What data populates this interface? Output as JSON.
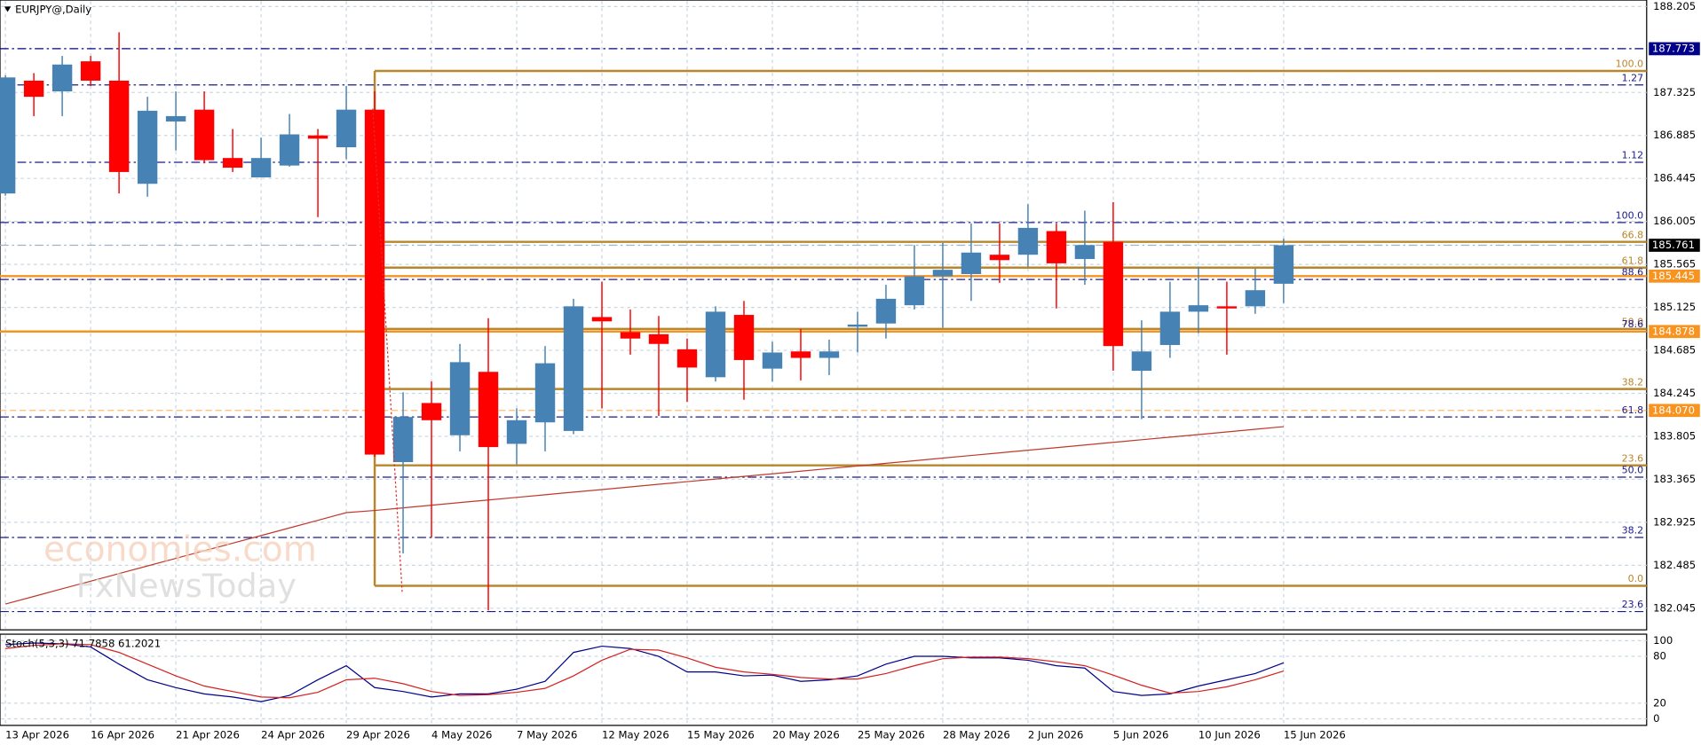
{
  "chart_data": [
    {
      "type": "candlestick",
      "title": "EURJPY@,Daily",
      "watermark": [
        "economies.com",
        "FxNewsToday"
      ],
      "categories": [
        "13 Apr 2026",
        null,
        null,
        "16 Apr 2026",
        null,
        null,
        "21 Apr 2026",
        null,
        null,
        "24 Apr 2026",
        null,
        null,
        "29 Apr 2026",
        null,
        null,
        "4 May 2026",
        null,
        null,
        "7 May 2026",
        null,
        null,
        "12 May 2026",
        null,
        null,
        "15 May 2026",
        null,
        null,
        "20 May 2026",
        null,
        null,
        "25 May 2026",
        null,
        null,
        "28 May 2026",
        null,
        null,
        "2 Jun 2026",
        null,
        null,
        "5 Jun 2026",
        null,
        null,
        "10 Jun 2026",
        null,
        null,
        "15 Jun 2026"
      ],
      "open": [
        186.291,
        187.446,
        187.336,
        187.644,
        187.446,
        186.39,
        187.028,
        187.149,
        186.654,
        186.456,
        186.577,
        186.885,
        186.764,
        187.149,
        183.541,
        184.146,
        183.816,
        184.465,
        183.728,
        183.948,
        183.86,
        185.026,
        184.872,
        184.85,
        184.696,
        184.41,
        185.048,
        184.498,
        184.674,
        184.608,
        184.927,
        184.96,
        185.147,
        185.444,
        185.466,
        185.664,
        185.664,
        185.906,
        185.62,
        185.796,
        184.476,
        184.74,
        185.081,
        185.136,
        185.136,
        185.367
      ],
      "high": [
        187.501,
        187.523,
        187.699,
        187.699,
        187.941,
        187.281,
        187.336,
        187.336,
        186.951,
        186.863,
        187.105,
        186.951,
        187.391,
        187.336,
        184.256,
        184.366,
        184.751,
        185.015,
        184.091,
        184.729,
        185.213,
        185.388,
        185.103,
        185.037,
        184.806,
        185.136,
        185.191,
        184.773,
        184.905,
        184.795,
        185.081,
        185.356,
        185.763,
        185.785,
        185.983,
        185.983,
        186.181,
        185.983,
        186.115,
        186.203,
        184.993,
        185.388,
        185.543,
        185.388,
        185.521,
        185.829
      ],
      "low": [
        186.269,
        187.083,
        187.083,
        187.391,
        186.291,
        186.258,
        186.731,
        186.599,
        186.511,
        186.456,
        186.566,
        186.049,
        186.643,
        183.596,
        182.606,
        182.771,
        183.651,
        182.023,
        183.519,
        183.651,
        183.827,
        184.091,
        184.641,
        184.014,
        184.157,
        184.366,
        184.179,
        184.366,
        184.377,
        184.432,
        184.663,
        184.806,
        185.103,
        184.916,
        185.191,
        185.377,
        185.543,
        185.114,
        185.356,
        184.476,
        183.981,
        184.608,
        184.861,
        184.641,
        185.059,
        185.169
      ],
      "close": [
        187.479,
        187.281,
        187.611,
        187.446,
        186.511,
        187.138,
        187.083,
        186.632,
        186.555,
        186.654,
        186.896,
        186.852,
        187.149,
        183.618,
        184.003,
        183.97,
        184.564,
        183.695,
        183.97,
        184.553,
        185.136,
        184.982,
        184.806,
        184.751,
        184.509,
        185.081,
        184.586,
        184.663,
        184.608,
        184.674,
        184.949,
        185.213,
        185.444,
        185.51,
        185.686,
        185.609,
        185.939,
        185.576,
        185.763,
        184.729,
        184.674,
        185.081,
        185.147,
        185.114,
        185.301,
        185.761
      ],
      "up_color": "#4682b4",
      "down_color": "#ff0000",
      "moving_average": {
        "color": "#c0392b",
        "values": [
          182.088,
          182.166,
          182.245,
          182.322,
          182.4,
          182.478,
          182.556,
          182.634,
          182.711,
          182.789,
          182.867,
          182.945,
          183.024,
          183.046,
          183.073,
          183.1,
          183.127,
          183.153,
          183.18,
          183.207,
          183.234,
          183.26,
          183.287,
          183.314,
          183.341,
          183.368,
          183.395,
          183.421,
          183.448,
          183.475,
          183.502,
          183.529,
          183.555,
          183.582,
          183.609,
          183.636,
          183.663,
          183.689,
          183.716,
          183.743,
          183.77,
          183.797,
          183.823,
          183.85,
          183.877,
          183.904
        ]
      },
      "fibonacci": [
        {
          "color": "#b8862b",
          "levels": [
            {
              "label": "100.0",
              "value": 187.545
            },
            {
              "label": "66.8",
              "value": 185.796
            },
            {
              "label": "61.8",
              "value": 185.532
            },
            {
              "label": "50.0",
              "value": 184.905
            },
            {
              "label": "38.2",
              "value": 184.289
            },
            {
              "label": "23.6",
              "value": 183.508
            },
            {
              "label": "0.0",
              "value": 182.275
            }
          ]
        },
        {
          "color": "#1a1a8c",
          "levels": [
            {
              "label": "1.27",
              "value": 187.402
            },
            {
              "label": "1.12",
              "value": 186.61
            },
            {
              "label": "100.0",
              "value": 185.994
            },
            {
              "label": "88.6",
              "value": 185.411
            },
            {
              "label": "78.6",
              "value": 184.883
            },
            {
              "label": "61.8",
              "value": 184.003
            },
            {
              "label": "50.0",
              "value": 183.387
            },
            {
              "label": "38.2",
              "value": 182.77
            },
            {
              "label": "23.6",
              "value": 182.011
            }
          ]
        }
      ],
      "price_lines": [
        {
          "value": 187.773,
          "color": "#00008b"
        },
        {
          "value": 185.761,
          "color": "#000000"
        },
        {
          "value": 185.445,
          "color": "#f7931e"
        },
        {
          "value": 184.878,
          "color": "#f7931e"
        },
        {
          "value": 184.07,
          "label": "184.070",
          "color": "#f7931e"
        }
      ],
      "ylim": [
        181.824,
        188.271
      ],
      "yticks": [
        188.205,
        187.325,
        186.885,
        186.445,
        186.005,
        185.565,
        185.125,
        184.685,
        184.245,
        183.805,
        183.365,
        182.925,
        182.485,
        182.045
      ],
      "grid": true
    },
    {
      "type": "line",
      "title": "Stoch(5,3,3) 71.7858 61.2021",
      "series": [
        {
          "color": "#00008b",
          "values": [
            95,
            97,
            96,
            92,
            70,
            50,
            40,
            32,
            28,
            22,
            30,
            50,
            68,
            40,
            35,
            28,
            32,
            32,
            38,
            48,
            85,
            93,
            90,
            80,
            60,
            60,
            55,
            56,
            48,
            50,
            55,
            70,
            80,
            80,
            78,
            78,
            75,
            68,
            65,
            35,
            30,
            32,
            42,
            50,
            58,
            71.79
          ]
        },
        {
          "color": "#d62020",
          "values": [
            90,
            94,
            96,
            95,
            85,
            70,
            55,
            42,
            35,
            28,
            27,
            34,
            50,
            52,
            45,
            35,
            30,
            31,
            34,
            39,
            55,
            75,
            89,
            88,
            78,
            66,
            60,
            57,
            53,
            51,
            51,
            58,
            68,
            77,
            79,
            79,
            77,
            73,
            68,
            56,
            43,
            33,
            35,
            41,
            50,
            61.2
          ]
        }
      ],
      "ylim": [
        0,
        100
      ],
      "yticks": [
        100,
        80,
        20,
        0
      ],
      "grid": true
    }
  ]
}
